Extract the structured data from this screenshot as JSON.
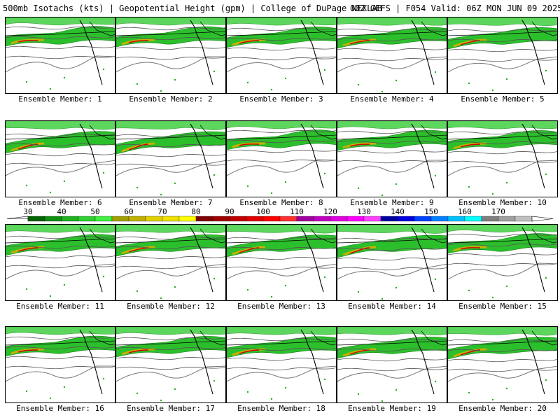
{
  "header": {
    "left": "500mb Isotachs (kts) | Geopotential Height (gpm) | College of DuPage NEXLAB",
    "right": "00Z GEFS | F054 Valid: 06Z MON JUN 09 2025"
  },
  "panels": [
    {
      "label": "Ensemble Member: 1"
    },
    {
      "label": "Ensemble Member: 2"
    },
    {
      "label": "Ensemble Member: 3"
    },
    {
      "label": "Ensemble Member: 4"
    },
    {
      "label": "Ensemble Member: 5"
    },
    {
      "label": "Ensemble Member: 6"
    },
    {
      "label": "Ensemble Member: 7"
    },
    {
      "label": "Ensemble Member: 8"
    },
    {
      "label": "Ensemble Member: 9"
    },
    {
      "label": "Ensemble Member: 10"
    },
    {
      "label": "Ensemble Member: 11"
    },
    {
      "label": "Ensemble Member: 12"
    },
    {
      "label": "Ensemble Member: 13"
    },
    {
      "label": "Ensemble Member: 14"
    },
    {
      "label": "Ensemble Member: 15"
    },
    {
      "label": "Ensemble Member: 16"
    },
    {
      "label": "Ensemble Member: 17"
    },
    {
      "label": "Ensemble Member: 18"
    },
    {
      "label": "Ensemble Member: 19"
    },
    {
      "label": "Ensemble Member: 20"
    }
  ],
  "colorbar": {
    "labels": [
      "30",
      "40",
      "50",
      "60",
      "70",
      "80",
      "90",
      "100",
      "110",
      "120",
      "130",
      "140",
      "150",
      "160",
      "170"
    ],
    "colors": [
      "#006400",
      "#109010",
      "#20b020",
      "#30d030",
      "#40f040",
      "#a0a000",
      "#c0b000",
      "#e0d000",
      "#f0e000",
      "#ffff00",
      "#800000",
      "#a00000",
      "#c00000",
      "#e00000",
      "#ff0000",
      "#ff3030",
      "#a000a0",
      "#c000c0",
      "#e000e0",
      "#ff00ff",
      "#ff40ff",
      "#0000a0",
      "#0000e0",
      "#0040ff",
      "#0080ff",
      "#00c0ff",
      "#00ffff",
      "#808080",
      "#a0a0a0",
      "#c0c0c0"
    ]
  }
}
